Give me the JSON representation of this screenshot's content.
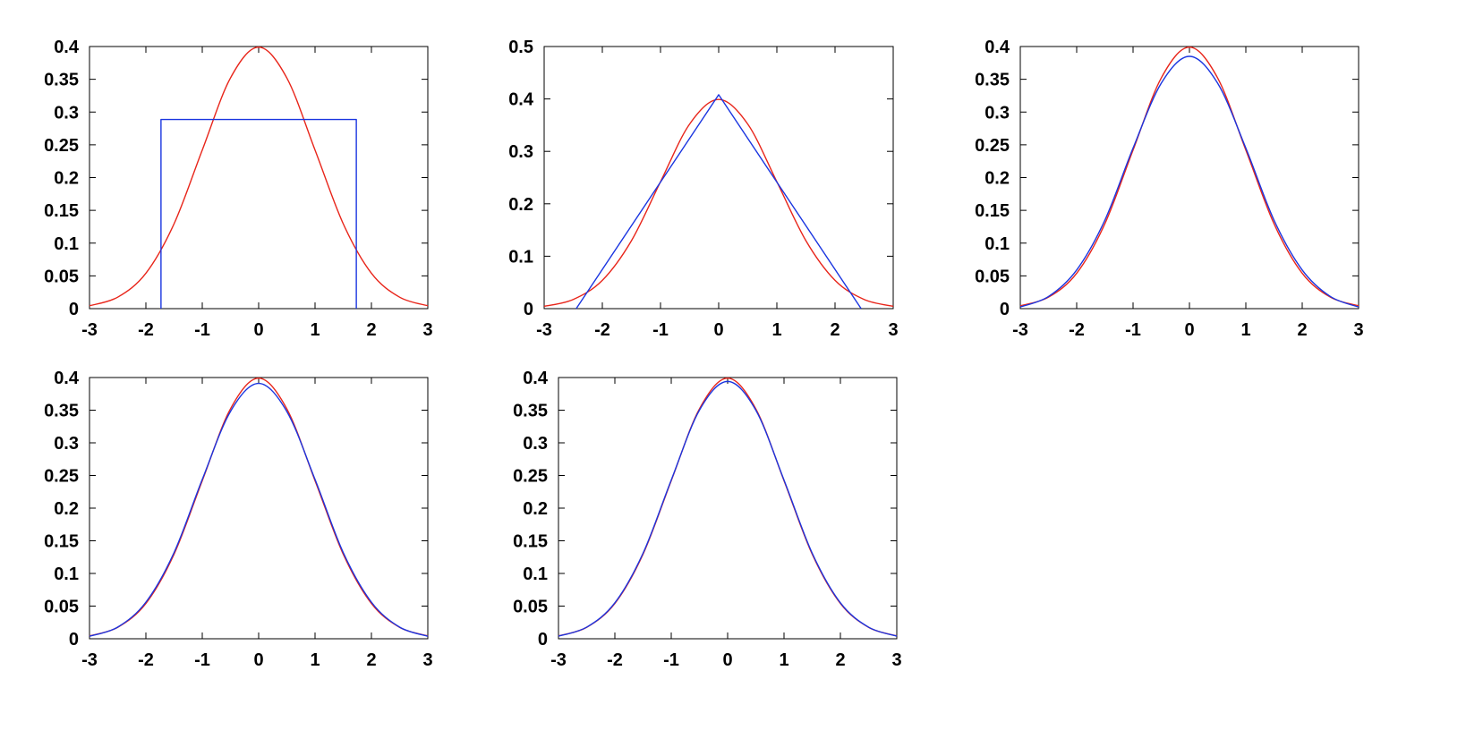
{
  "figure": {
    "layout": "2 rows x 3 columns, last cell empty",
    "colors": {
      "series_a": "#e8251a",
      "series_b": "#1a35e0",
      "axes": "#000000",
      "background": "#ffffff"
    }
  },
  "chart_data": [
    {
      "id": "panel-1",
      "type": "line",
      "title": "",
      "xlabel": "",
      "ylabel": "",
      "xlim": [
        -3,
        3
      ],
      "ylim": [
        0,
        0.4
      ],
      "grid": false,
      "legend": "none",
      "x_ticks": [
        -3,
        -2,
        -1,
        0,
        1,
        2,
        3
      ],
      "x_tick_labels": [
        "-3",
        "-2",
        "-1",
        "0",
        "1",
        "2",
        "3"
      ],
      "y_ticks": [
        0,
        0.05,
        0.1,
        0.15,
        0.2,
        0.25,
        0.3,
        0.35,
        0.4
      ],
      "y_tick_labels": [
        "0",
        "0.05",
        "0.1",
        "0.15",
        "0.2",
        "0.25",
        "0.3",
        "0.35",
        "0.4"
      ],
      "series": [
        {
          "color": "#e8251a",
          "x": [
            -3,
            -2.5,
            -2,
            -1.5,
            -1,
            -0.5,
            0,
            0.5,
            1,
            1.5,
            2,
            2.5,
            3
          ],
          "y": [
            0.0044,
            0.0175,
            0.054,
            0.1295,
            0.242,
            0.352,
            0.399,
            0.352,
            0.242,
            0.1295,
            0.054,
            0.0175,
            0.0044
          ]
        },
        {
          "color": "#1a35e0",
          "x": [
            -1.732,
            -1.732,
            1.732,
            1.732
          ],
          "y": [
            0,
            0.2887,
            0.2887,
            0
          ]
        }
      ]
    },
    {
      "id": "panel-2",
      "type": "line",
      "title": "",
      "xlabel": "",
      "ylabel": "",
      "xlim": [
        -3,
        3
      ],
      "ylim": [
        0,
        0.5
      ],
      "grid": false,
      "legend": "none",
      "x_ticks": [
        -3,
        -2,
        -1,
        0,
        1,
        2,
        3
      ],
      "x_tick_labels": [
        "-3",
        "-2",
        "-1",
        "0",
        "1",
        "2",
        "3"
      ],
      "y_ticks": [
        0,
        0.1,
        0.2,
        0.3,
        0.4,
        0.5
      ],
      "y_tick_labels": [
        "0",
        "0.1",
        "0.2",
        "0.3",
        "0.4",
        "0.5"
      ],
      "series": [
        {
          "color": "#e8251a",
          "x": [
            -3,
            -2.5,
            -2,
            -1.5,
            -1,
            -0.5,
            0,
            0.5,
            1,
            1.5,
            2,
            2.5,
            3
          ],
          "y": [
            0.0044,
            0.0175,
            0.054,
            0.1295,
            0.242,
            0.352,
            0.399,
            0.352,
            0.242,
            0.1295,
            0.054,
            0.0175,
            0.0044
          ]
        },
        {
          "color": "#1a35e0",
          "x": [
            -2.449,
            0,
            2.449
          ],
          "y": [
            0,
            0.408,
            0
          ]
        }
      ]
    },
    {
      "id": "panel-3",
      "type": "line",
      "title": "",
      "xlabel": "",
      "ylabel": "",
      "xlim": [
        -3,
        3
      ],
      "ylim": [
        0,
        0.4
      ],
      "grid": false,
      "legend": "none",
      "x_ticks": [
        -3,
        -2,
        -1,
        0,
        1,
        2,
        3
      ],
      "x_tick_labels": [
        "-3",
        "-2",
        "-1",
        "0",
        "1",
        "2",
        "3"
      ],
      "y_ticks": [
        0,
        0.05,
        0.1,
        0.15,
        0.2,
        0.25,
        0.3,
        0.35,
        0.4
      ],
      "y_tick_labels": [
        "0",
        "0.05",
        "0.1",
        "0.15",
        "0.2",
        "0.25",
        "0.3",
        "0.35",
        "0.4"
      ],
      "series": [
        {
          "color": "#e8251a",
          "x": [
            -3,
            -2.5,
            -2,
            -1.5,
            -1,
            -0.5,
            0,
            0.5,
            1,
            1.5,
            2,
            2.5,
            3
          ],
          "y": [
            0.0044,
            0.0175,
            0.054,
            0.1295,
            0.242,
            0.352,
            0.399,
            0.352,
            0.242,
            0.1295,
            0.054,
            0.0175,
            0.0044
          ]
        },
        {
          "color": "#1a35e0",
          "x": [
            -3,
            -2.5,
            -2,
            -1.5,
            -1,
            -0.5,
            0,
            0.5,
            1,
            1.5,
            2,
            2.5,
            3
          ],
          "y": [
            0.0025,
            0.0185,
            0.059,
            0.135,
            0.245,
            0.344,
            0.385,
            0.344,
            0.245,
            0.135,
            0.059,
            0.0185,
            0.0025
          ]
        }
      ]
    },
    {
      "id": "panel-4",
      "type": "line",
      "title": "",
      "xlabel": "",
      "ylabel": "",
      "xlim": [
        -3,
        3
      ],
      "ylim": [
        0,
        0.4
      ],
      "grid": false,
      "legend": "none",
      "x_ticks": [
        -3,
        -2,
        -1,
        0,
        1,
        2,
        3
      ],
      "x_tick_labels": [
        "-3",
        "-2",
        "-1",
        "0",
        "1",
        "2",
        "3"
      ],
      "y_ticks": [
        0,
        0.05,
        0.1,
        0.15,
        0.2,
        0.25,
        0.3,
        0.35,
        0.4
      ],
      "y_tick_labels": [
        "0",
        "0.05",
        "0.1",
        "0.15",
        "0.2",
        "0.25",
        "0.3",
        "0.35",
        "0.4"
      ],
      "series": [
        {
          "color": "#e8251a",
          "x": [
            -3,
            -2.5,
            -2,
            -1.5,
            -1,
            -0.5,
            0,
            0.5,
            1,
            1.5,
            2,
            2.5,
            3
          ],
          "y": [
            0.0044,
            0.0175,
            0.054,
            0.1295,
            0.242,
            0.352,
            0.399,
            0.352,
            0.242,
            0.1295,
            0.054,
            0.0175,
            0.0044
          ]
        },
        {
          "color": "#1a35e0",
          "x": [
            -3,
            -2.5,
            -2,
            -1.5,
            -1,
            -0.5,
            0,
            0.5,
            1,
            1.5,
            2,
            2.5,
            3
          ],
          "y": [
            0.0038,
            0.0178,
            0.056,
            0.132,
            0.244,
            0.348,
            0.391,
            0.348,
            0.244,
            0.132,
            0.056,
            0.0178,
            0.0038
          ]
        }
      ]
    },
    {
      "id": "panel-5",
      "type": "line",
      "title": "",
      "xlabel": "",
      "ylabel": "",
      "xlim": [
        -3,
        3
      ],
      "ylim": [
        0,
        0.4
      ],
      "grid": false,
      "legend": "none",
      "x_ticks": [
        -3,
        -2,
        -1,
        0,
        1,
        2,
        3
      ],
      "x_tick_labels": [
        "-3",
        "-2",
        "-1",
        "0",
        "1",
        "2",
        "3"
      ],
      "y_ticks": [
        0,
        0.05,
        0.1,
        0.15,
        0.2,
        0.25,
        0.3,
        0.35,
        0.4
      ],
      "y_tick_labels": [
        "0",
        "0.05",
        "0.1",
        "0.15",
        "0.2",
        "0.25",
        "0.3",
        "0.35",
        "0.4"
      ],
      "series": [
        {
          "color": "#e8251a",
          "x": [
            -3,
            -2.5,
            -2,
            -1.5,
            -1,
            -0.5,
            0,
            0.5,
            1,
            1.5,
            2,
            2.5,
            3
          ],
          "y": [
            0.0044,
            0.0175,
            0.054,
            0.1295,
            0.242,
            0.352,
            0.399,
            0.352,
            0.242,
            0.1295,
            0.054,
            0.0175,
            0.0044
          ]
        },
        {
          "color": "#1a35e0",
          "x": [
            -3,
            -2.5,
            -2,
            -1.5,
            -1,
            -0.5,
            0,
            0.5,
            1,
            1.5,
            2,
            2.5,
            3
          ],
          "y": [
            0.004,
            0.0177,
            0.055,
            0.131,
            0.243,
            0.35,
            0.394,
            0.35,
            0.243,
            0.131,
            0.055,
            0.0177,
            0.004
          ]
        }
      ]
    }
  ]
}
